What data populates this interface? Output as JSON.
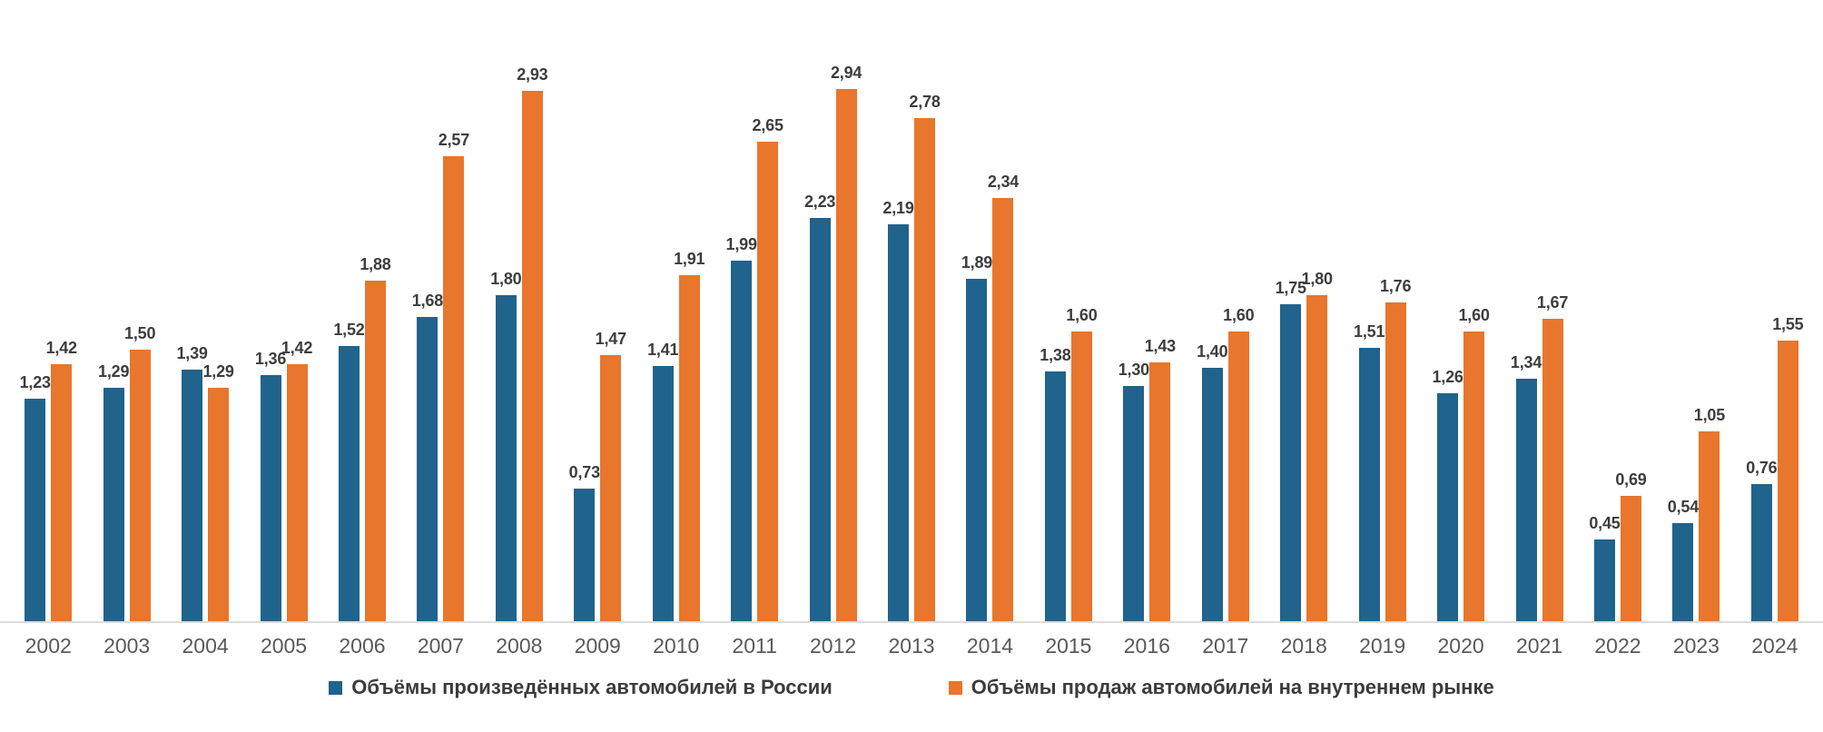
{
  "chart_data": {
    "type": "bar",
    "title": "",
    "xlabel": "",
    "ylabel": "",
    "ylim": [
      0,
      2.94
    ],
    "grid": false,
    "y_axis_visible": false,
    "data_labels": true,
    "decimal_separator": ",",
    "legend_position": "bottom",
    "categories": [
      "2002",
      "2003",
      "2004",
      "2005",
      "2006",
      "2007",
      "2008",
      "2009",
      "2010",
      "2011",
      "2012",
      "2013",
      "2014",
      "2015",
      "2016",
      "2017",
      "2018",
      "2019",
      "2020",
      "2021",
      "2022",
      "2023",
      "2024"
    ],
    "series": [
      {
        "name": "Объёмы произведённых автомобилей в России",
        "color": "#20638C",
        "values": [
          1.23,
          1.29,
          1.39,
          1.36,
          1.52,
          1.68,
          1.8,
          0.73,
          1.41,
          1.99,
          2.23,
          2.19,
          1.89,
          1.38,
          1.3,
          1.4,
          1.75,
          1.51,
          1.26,
          1.34,
          0.45,
          0.54,
          0.76
        ]
      },
      {
        "name": "Объёмы продаж автомобилей на внутреннем рынке",
        "color": "#E8762C",
        "values": [
          1.42,
          1.5,
          1.29,
          1.42,
          1.88,
          2.57,
          2.93,
          1.47,
          1.91,
          2.65,
          2.94,
          2.78,
          2.34,
          1.6,
          1.43,
          1.6,
          1.8,
          1.76,
          1.6,
          1.67,
          0.69,
          1.05,
          1.55
        ]
      }
    ],
    "colors": {
      "axis_line": "#dcdcdc",
      "data_label_text": "#3d3d3d",
      "year_label_text": "#595959",
      "legend_text": "#3b3b3b",
      "background": "#ffffff"
    }
  }
}
